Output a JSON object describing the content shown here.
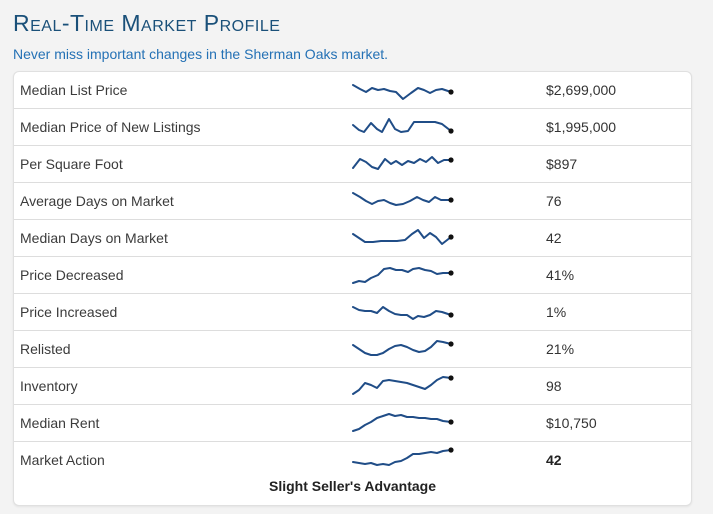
{
  "header": {
    "title": "Real-Time Market Profile",
    "subtitle": "Never miss important changes in the Sherman Oaks market."
  },
  "rows": [
    {
      "label": "Median List Price",
      "value": "$2,699,000",
      "spark": [
        [
          2,
          9
        ],
        [
          9,
          13
        ],
        [
          15,
          16
        ],
        [
          21,
          12
        ],
        [
          27,
          14
        ],
        [
          33,
          13
        ],
        [
          39,
          15
        ],
        [
          45,
          16
        ],
        [
          52,
          23
        ],
        [
          60,
          17
        ],
        [
          67,
          12
        ],
        [
          73,
          14
        ],
        [
          79,
          17
        ],
        [
          85,
          14
        ],
        [
          91,
          13
        ],
        [
          100,
          16
        ]
      ]
    },
    {
      "label": "Median Price of New Listings",
      "value": "$1,995,000",
      "spark": [
        [
          2,
          12
        ],
        [
          8,
          17
        ],
        [
          13,
          19
        ],
        [
          20,
          10
        ],
        [
          26,
          16
        ],
        [
          31,
          19
        ],
        [
          38,
          6
        ],
        [
          44,
          16
        ],
        [
          50,
          19
        ],
        [
          57,
          18
        ],
        [
          63,
          9
        ],
        [
          70,
          9
        ],
        [
          77,
          9
        ],
        [
          84,
          9
        ],
        [
          91,
          11
        ],
        [
          100,
          18
        ]
      ]
    },
    {
      "label": "Per Square Foot",
      "value": "$897",
      "spark": [
        [
          2,
          18
        ],
        [
          9,
          9
        ],
        [
          15,
          12
        ],
        [
          21,
          17
        ],
        [
          27,
          19
        ],
        [
          34,
          9
        ],
        [
          40,
          14
        ],
        [
          45,
          11
        ],
        [
          51,
          15
        ],
        [
          57,
          11
        ],
        [
          63,
          13
        ],
        [
          69,
          9
        ],
        [
          75,
          12
        ],
        [
          81,
          7
        ],
        [
          87,
          13
        ],
        [
          93,
          10
        ],
        [
          100,
          10
        ]
      ]
    },
    {
      "label": "Average Days on Market",
      "value": "76",
      "spark": [
        [
          2,
          6
        ],
        [
          9,
          10
        ],
        [
          15,
          14
        ],
        [
          21,
          17
        ],
        [
          27,
          14
        ],
        [
          33,
          13
        ],
        [
          39,
          16
        ],
        [
          45,
          18
        ],
        [
          52,
          17
        ],
        [
          59,
          14
        ],
        [
          66,
          10
        ],
        [
          72,
          13
        ],
        [
          78,
          15
        ],
        [
          84,
          10
        ],
        [
          90,
          13
        ],
        [
          100,
          13
        ]
      ]
    },
    {
      "label": "Median Days on Market",
      "value": "42",
      "spark": [
        [
          2,
          10
        ],
        [
          8,
          14
        ],
        [
          14,
          18
        ],
        [
          22,
          18
        ],
        [
          30,
          17
        ],
        [
          38,
          17
        ],
        [
          46,
          17
        ],
        [
          54,
          16
        ],
        [
          61,
          10
        ],
        [
          67,
          6
        ],
        [
          73,
          14
        ],
        [
          79,
          9
        ],
        [
          85,
          13
        ],
        [
          91,
          20
        ],
        [
          100,
          13
        ]
      ]
    },
    {
      "label": "Price Decreased",
      "value": "41%",
      "spark": [
        [
          2,
          22
        ],
        [
          8,
          20
        ],
        [
          14,
          21
        ],
        [
          20,
          17
        ],
        [
          27,
          14
        ],
        [
          33,
          8
        ],
        [
          39,
          7
        ],
        [
          45,
          9
        ],
        [
          51,
          9
        ],
        [
          57,
          11
        ],
        [
          62,
          8
        ],
        [
          68,
          7
        ],
        [
          74,
          9
        ],
        [
          80,
          10
        ],
        [
          86,
          13
        ],
        [
          92,
          12
        ],
        [
          100,
          12
        ]
      ]
    },
    {
      "label": "Price Increased",
      "value": "1%",
      "spark": [
        [
          2,
          9
        ],
        [
          8,
          12
        ],
        [
          14,
          13
        ],
        [
          20,
          13
        ],
        [
          26,
          15
        ],
        [
          32,
          9
        ],
        [
          38,
          13
        ],
        [
          44,
          16
        ],
        [
          50,
          17
        ],
        [
          56,
          17
        ],
        [
          62,
          21
        ],
        [
          67,
          18
        ],
        [
          73,
          19
        ],
        [
          79,
          17
        ],
        [
          85,
          13
        ],
        [
          91,
          14
        ],
        [
          100,
          17
        ]
      ]
    },
    {
      "label": "Relisted",
      "value": "21%",
      "spark": [
        [
          2,
          10
        ],
        [
          8,
          14
        ],
        [
          14,
          18
        ],
        [
          20,
          20
        ],
        [
          26,
          20
        ],
        [
          32,
          18
        ],
        [
          38,
          14
        ],
        [
          44,
          11
        ],
        [
          50,
          10
        ],
        [
          56,
          12
        ],
        [
          62,
          15
        ],
        [
          68,
          17
        ],
        [
          74,
          16
        ],
        [
          80,
          12
        ],
        [
          86,
          6
        ],
        [
          92,
          7
        ],
        [
          100,
          9
        ]
      ]
    },
    {
      "label": "Inventory",
      "value": "98",
      "spark": [
        [
          2,
          22
        ],
        [
          8,
          18
        ],
        [
          14,
          11
        ],
        [
          20,
          13
        ],
        [
          26,
          16
        ],
        [
          32,
          9
        ],
        [
          38,
          8
        ],
        [
          44,
          9
        ],
        [
          50,
          10
        ],
        [
          56,
          11
        ],
        [
          62,
          13
        ],
        [
          68,
          15
        ],
        [
          74,
          17
        ],
        [
          80,
          13
        ],
        [
          86,
          8
        ],
        [
          92,
          5
        ],
        [
          100,
          6
        ]
      ]
    },
    {
      "label": "Median Rent",
      "value": "$10,750",
      "spark": [
        [
          2,
          22
        ],
        [
          8,
          20
        ],
        [
          14,
          16
        ],
        [
          20,
          13
        ],
        [
          26,
          9
        ],
        [
          32,
          7
        ],
        [
          38,
          5
        ],
        [
          44,
          7
        ],
        [
          50,
          6
        ],
        [
          56,
          8
        ],
        [
          62,
          8
        ],
        [
          68,
          9
        ],
        [
          74,
          9
        ],
        [
          80,
          10
        ],
        [
          86,
          10
        ],
        [
          92,
          12
        ],
        [
          100,
          13
        ]
      ]
    },
    {
      "label": "Market Action",
      "value": "42",
      "spark": [
        [
          2,
          16
        ],
        [
          8,
          17
        ],
        [
          14,
          18
        ],
        [
          20,
          17
        ],
        [
          26,
          19
        ],
        [
          32,
          18
        ],
        [
          38,
          19
        ],
        [
          44,
          16
        ],
        [
          50,
          15
        ],
        [
          56,
          12
        ],
        [
          62,
          8
        ],
        [
          68,
          8
        ],
        [
          74,
          7
        ],
        [
          80,
          6
        ],
        [
          86,
          7
        ],
        [
          92,
          5
        ],
        [
          100,
          4
        ]
      ]
    }
  ],
  "footer": {
    "status": "Slight Seller's Advantage"
  },
  "colors": {
    "title": "#1a5079",
    "subtitle": "#2471b5",
    "sparkline": "#204d87",
    "spark_dot": "#111111",
    "row_divider": "#dddddd",
    "card_background": "#ffffff",
    "page_background": "#f3f3f3"
  }
}
